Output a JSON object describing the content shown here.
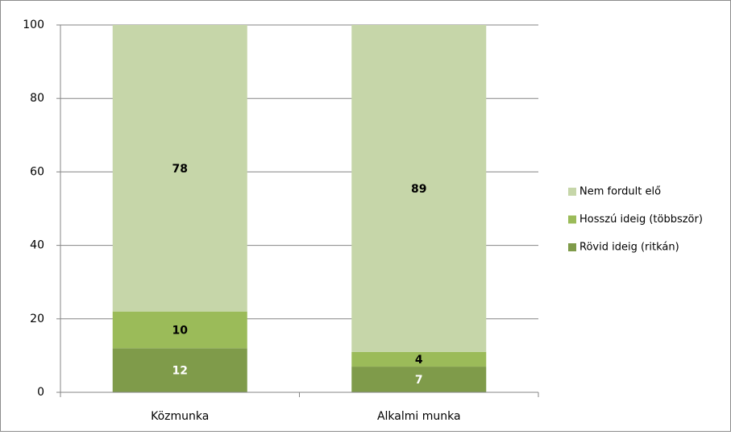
{
  "chart_data": {
    "type": "stacked_bar",
    "categories": [
      "Közmunka",
      "Alkalmi munka"
    ],
    "series": [
      {
        "name": "Rövid ideig (ritkán)",
        "color": "#7f9b4a",
        "label_color": "#ffffff",
        "values": [
          12,
          7
        ]
      },
      {
        "name": "Hosszú ideig (többször)",
        "color": "#9bbb59",
        "label_color": "#000000",
        "values": [
          10,
          4
        ]
      },
      {
        "name": "Nem fordult elő",
        "color": "#c6d6a9",
        "label_color": "#000000",
        "values": [
          78,
          89
        ]
      }
    ],
    "ylim": [
      0,
      100
    ],
    "yticks": [
      0,
      20,
      40,
      60,
      80,
      100
    ],
    "grid": true,
    "legend": "right"
  }
}
